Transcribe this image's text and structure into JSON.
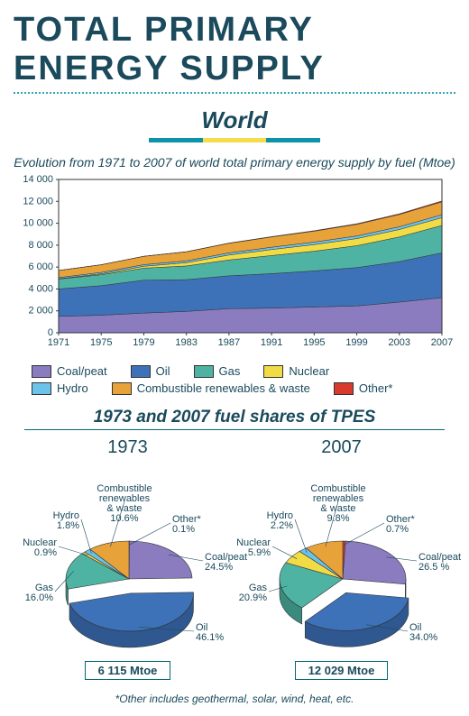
{
  "title": "TOTAL PRIMARY ENERGY SUPPLY",
  "subtitle": "World",
  "underline_colors": {
    "outer": "#0d93a7",
    "inner": "#f7dc4e",
    "outer_w": 60,
    "inner_w": 70
  },
  "area_chart": {
    "caption": "Evolution from 1971 to 2007 of world total primary energy supply by fuel (Mtoe)",
    "type": "stacked_area",
    "plot_bg": "#ffffff",
    "border_color": "#333333",
    "axis_color": "#1a4a5c",
    "font_size": 11,
    "x": {
      "min": 1971,
      "max": 2007,
      "ticks": [
        1971,
        1975,
        1979,
        1983,
        1987,
        1991,
        1995,
        1999,
        2003,
        2007
      ]
    },
    "y": {
      "min": 0,
      "max": 14000,
      "ticks": [
        0,
        2000,
        4000,
        6000,
        8000,
        10000,
        12000,
        14000
      ],
      "tick_labels": [
        "0",
        "2 000",
        "4 000",
        "6 000",
        "8 000",
        "10 000",
        "12 000",
        "14 000"
      ]
    },
    "series_order": [
      "coal",
      "oil",
      "gas",
      "nuclear",
      "hydro",
      "crw",
      "other"
    ],
    "colors": {
      "coal": "#8b7cc0",
      "oil": "#3e72b8",
      "gas": "#4fb3a4",
      "nuclear": "#f2dc46",
      "hydro": "#6bc3ea",
      "crw": "#e8a23a",
      "other": "#d83a2b"
    },
    "labels": {
      "coal": "Coal/peat",
      "oil": "Oil",
      "gas": "Gas",
      "nuclear": "Nuclear",
      "hydro": "Hydro",
      "crw": "Combustible renewables & waste",
      "other": "Other*"
    },
    "years": [
      1971,
      1975,
      1979,
      1983,
      1987,
      1991,
      1995,
      1999,
      2003,
      2007
    ],
    "coal": [
      1500,
      1600,
      1800,
      1950,
      2200,
      2250,
      2350,
      2450,
      2800,
      3200
    ],
    "oil": [
      2500,
      2700,
      3000,
      2900,
      3000,
      3150,
      3300,
      3500,
      3700,
      4100
    ],
    "gas": [
      900,
      1000,
      1100,
      1250,
      1450,
      1650,
      1800,
      2000,
      2250,
      2500
    ],
    "nuclear": [
      30,
      80,
      170,
      300,
      450,
      550,
      600,
      650,
      680,
      710
    ],
    "hydro": [
      110,
      130,
      150,
      170,
      190,
      210,
      230,
      240,
      250,
      265
    ],
    "crw": [
      650,
      700,
      760,
      820,
      880,
      940,
      1000,
      1060,
      1120,
      1180
    ],
    "other": [
      5,
      7,
      10,
      15,
      22,
      30,
      40,
      55,
      65,
      84
    ]
  },
  "pies_title": "1973 and 2007 fuel shares of TPES",
  "pies": {
    "colors": {
      "coal": "#8b7cc0",
      "oil": "#3e72b8",
      "gas": "#4fb3a4",
      "nuclear": "#f2dc46",
      "hydro": "#6bc3ea",
      "crw": "#e8a23a",
      "other": "#d83a2b"
    },
    "side_color": {
      "coal": "#6b5f99",
      "oil": "#2f5790",
      "gas": "#3a8a7e",
      "nuclear": "#c9b738",
      "hydro": "#4f9ac0",
      "crw": "#bb7f2a",
      "other": "#a82c20"
    },
    "outline": "#333333",
    "label_font_size": 11,
    "p1973": {
      "year": "1973",
      "total": "6 115 Mtoe",
      "order": [
        "other",
        "coal",
        "oil",
        "gas",
        "nuclear",
        "hydro",
        "crw"
      ],
      "values": {
        "coal": 24.5,
        "oil": 46.1,
        "gas": 16.0,
        "nuclear": 0.9,
        "hydro": 1.8,
        "crw": 10.6,
        "other": 0.1
      },
      "explode": "oil",
      "labels": {
        "coal": "Coal/peat\n24.5%",
        "oil": "Oil\n46.1%",
        "gas": "Gas\n16.0%",
        "nuclear": "Nuclear\n0.9%",
        "hydro": "Hydro\n1.8%",
        "crw": "Combustible\nrenewables\n& waste\n10.6%",
        "other": "Other*\n0.1%"
      }
    },
    "p2007": {
      "year": "2007",
      "total": "12 029 Mtoe",
      "order": [
        "other",
        "coal",
        "oil",
        "gas",
        "nuclear",
        "hydro",
        "crw"
      ],
      "values": {
        "coal": 26.5,
        "oil": 34.0,
        "gas": 20.9,
        "nuclear": 5.9,
        "hydro": 2.2,
        "crw": 9.8,
        "other": 0.7
      },
      "explode": "oil",
      "labels": {
        "coal": "Coal/peat\n26.5 %",
        "oil": "Oil\n34.0%",
        "gas": "Gas\n20.9%",
        "nuclear": "Nuclear\n5.9%",
        "hydro": "Hydro\n2.2%",
        "crw": "Combustible\nrenewables\n& waste\n9.8%",
        "other": "Other*\n0.7%"
      }
    }
  },
  "footnote": "*Other includes geothermal, solar, wind, heat, etc."
}
